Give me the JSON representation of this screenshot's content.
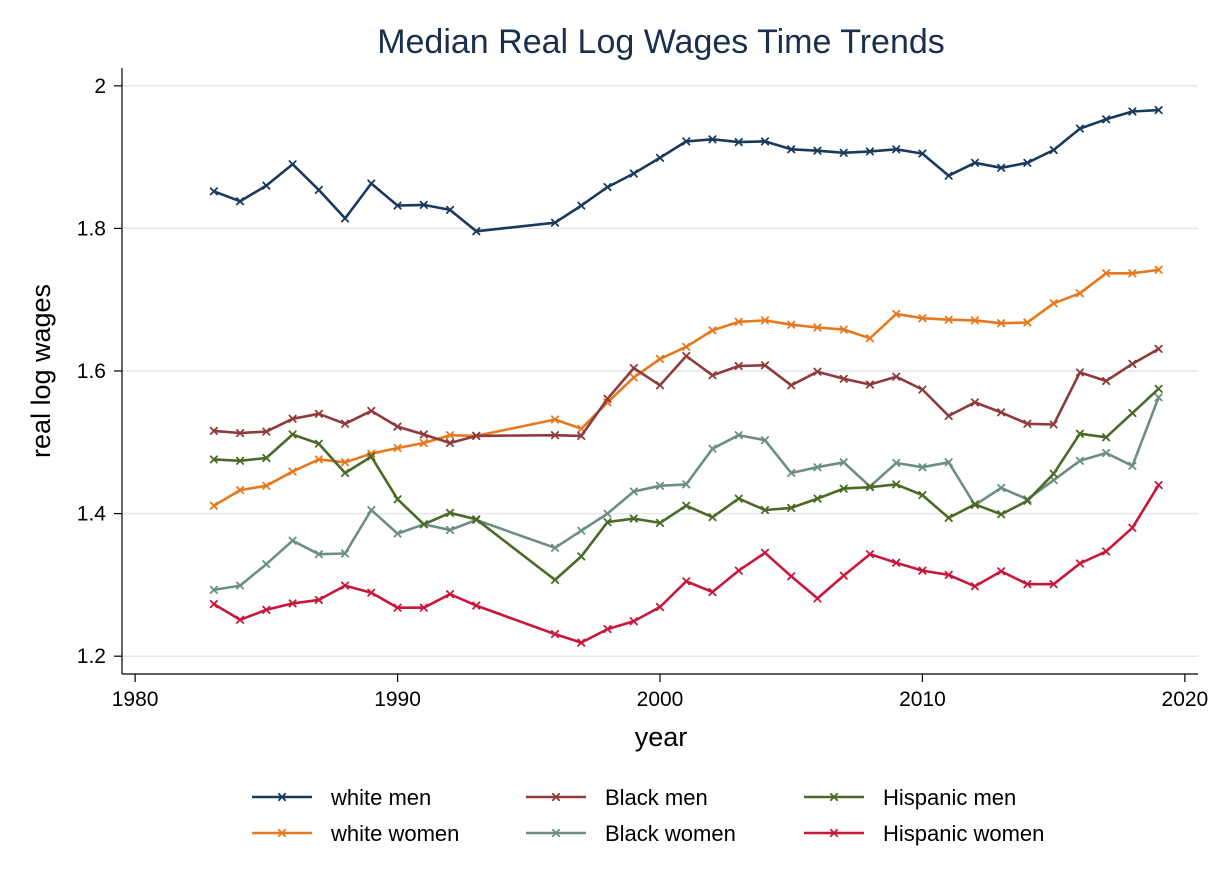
{
  "chart_data": {
    "type": "line",
    "title": "Median Real Log Wages Time Trends",
    "xlabel": "year",
    "ylabel": "real log wages",
    "xlim": [
      1979.5,
      2020.5
    ],
    "ylim": [
      1.175,
      2.025
    ],
    "xticks": [
      1980,
      1990,
      2000,
      2010,
      2020
    ],
    "xtick_labels": [
      "1980",
      "1990",
      "2000",
      "2010",
      "2020"
    ],
    "yticks": [
      1.2,
      1.4,
      1.6,
      1.8,
      2.0
    ],
    "ytick_labels": [
      "1.2",
      "1.4",
      "1.6",
      "1.8",
      "2"
    ],
    "grid": "horizontal",
    "legend_position": "bottom",
    "x": [
      1983,
      1984,
      1985,
      1986,
      1987,
      1988,
      1989,
      1990,
      1991,
      1992,
      1993,
      1996,
      1997,
      1998,
      1999,
      2000,
      2001,
      2002,
      2003,
      2004,
      2005,
      2006,
      2007,
      2008,
      2009,
      2010,
      2011,
      2012,
      2013,
      2014,
      2015,
      2016,
      2017,
      2018,
      2019
    ],
    "series": [
      {
        "name": "white men",
        "color": "#1a3a5c",
        "values": [
          1.852,
          1.838,
          1.86,
          1.89,
          1.854,
          1.814,
          1.863,
          1.832,
          1.833,
          1.826,
          1.796,
          1.808,
          1.832,
          1.858,
          1.877,
          1.899,
          1.922,
          1.925,
          1.921,
          1.922,
          1.911,
          1.909,
          1.906,
          1.908,
          1.911,
          1.905,
          1.874,
          1.892,
          1.885,
          1.892,
          1.91,
          1.94,
          1.953,
          1.964,
          1.966
        ]
      },
      {
        "name": "white women",
        "color": "#e8781e",
        "values": [
          1.411,
          1.433,
          1.439,
          1.459,
          1.476,
          1.472,
          1.484,
          1.492,
          1.499,
          1.51,
          1.509,
          1.532,
          1.519,
          1.556,
          1.591,
          1.617,
          1.634,
          1.657,
          1.669,
          1.671,
          1.665,
          1.661,
          1.658,
          1.646,
          1.68,
          1.674,
          1.672,
          1.671,
          1.667,
          1.668,
          1.695,
          1.709,
          1.737,
          1.737,
          1.742
        ]
      },
      {
        "name": "Black men",
        "color": "#8f3a3d",
        "values": [
          1.516,
          1.513,
          1.515,
          1.533,
          1.54,
          1.526,
          1.544,
          1.522,
          1.511,
          1.499,
          1.509,
          1.51,
          1.509,
          1.561,
          1.604,
          1.58,
          1.621,
          1.594,
          1.607,
          1.608,
          1.58,
          1.599,
          1.589,
          1.581,
          1.592,
          1.574,
          1.537,
          1.556,
          1.542,
          1.526,
          1.525,
          1.598,
          1.586,
          1.61,
          1.631
        ]
      },
      {
        "name": "Black women",
        "color": "#6c8f83",
        "values": [
          1.293,
          1.299,
          1.329,
          1.362,
          1.343,
          1.344,
          1.405,
          1.372,
          1.385,
          1.377,
          1.391,
          1.352,
          1.376,
          1.4,
          1.431,
          1.439,
          1.441,
          1.491,
          1.51,
          1.503,
          1.457,
          1.465,
          1.472,
          1.438,
          1.471,
          1.465,
          1.472,
          1.412,
          1.436,
          1.42,
          1.447,
          1.474,
          1.485,
          1.467,
          1.563
        ]
      },
      {
        "name": "Hispanic men",
        "color": "#4a6a25",
        "values": [
          1.476,
          1.474,
          1.478,
          1.511,
          1.498,
          1.457,
          1.48,
          1.42,
          1.385,
          1.401,
          1.392,
          1.307,
          1.34,
          1.388,
          1.393,
          1.387,
          1.411,
          1.395,
          1.421,
          1.405,
          1.408,
          1.421,
          1.435,
          1.437,
          1.441,
          1.426,
          1.394,
          1.413,
          1.399,
          1.418,
          1.456,
          1.512,
          1.507,
          1.541,
          1.575
        ]
      },
      {
        "name": "Hispanic women",
        "color": "#c8173b",
        "values": [
          1.273,
          1.251,
          1.265,
          1.274,
          1.279,
          1.299,
          1.289,
          1.268,
          1.268,
          1.287,
          1.271,
          1.231,
          1.219,
          1.238,
          1.249,
          1.269,
          1.305,
          1.29,
          1.32,
          1.345,
          1.312,
          1.281,
          1.313,
          1.343,
          1.331,
          1.32,
          1.314,
          1.298,
          1.319,
          1.301,
          1.301,
          1.33,
          1.347,
          1.38,
          1.44
        ]
      }
    ]
  }
}
